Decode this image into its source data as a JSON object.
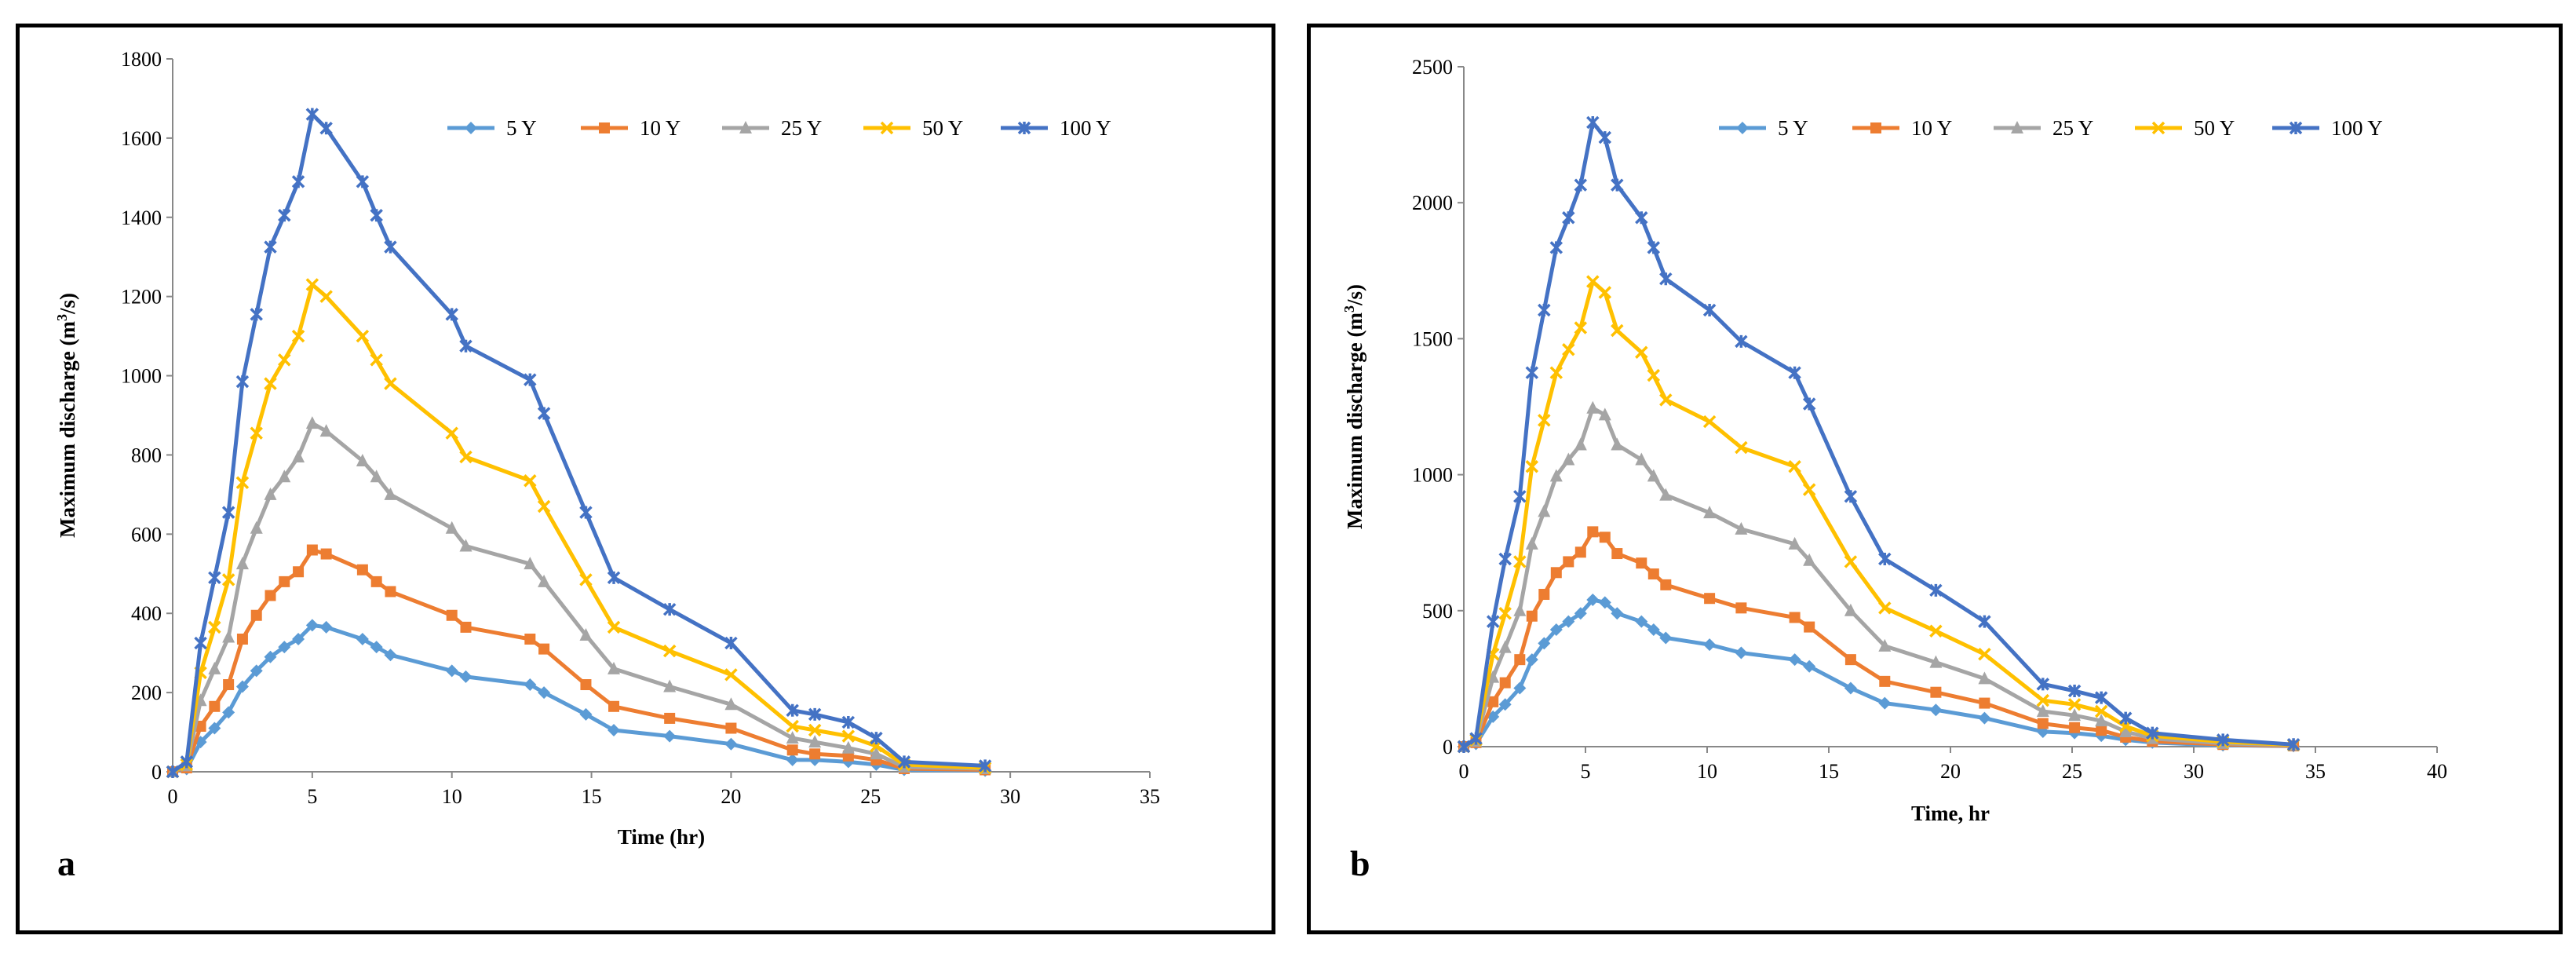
{
  "colors": {
    "5 Y": "#5B9BD5",
    "10 Y": "#ED7D31",
    "25 Y": "#A5A5A5",
    "50 Y": "#FFC000",
    "100 Y": "#4472C4"
  },
  "markers": {
    "5 Y": "diamond",
    "10 Y": "square",
    "25 Y": "triangle",
    "50 Y": "x",
    "100 Y": "star"
  },
  "chart_data": [
    {
      "id": "a",
      "type": "line",
      "panel_label": "a",
      "xlabel": "Time  (hr)",
      "ylabel_prefix": "Maximum  discharge  (m",
      "ylabel_sup": "3",
      "ylabel_suffix": "/s)",
      "xlim": [
        0,
        35
      ],
      "ylim": [
        0,
        1800
      ],
      "xticks": [
        0,
        5,
        10,
        15,
        20,
        25,
        30,
        35
      ],
      "yticks": [
        0,
        200,
        400,
        600,
        800,
        1000,
        1200,
        1400,
        1600,
        1800
      ],
      "legend": [
        "5 Y",
        "10 Y",
        "25 Y",
        "50 Y",
        "100 Y"
      ],
      "x": [
        0,
        0.5,
        1,
        1.5,
        2,
        2.5,
        3,
        3.5,
        4,
        4.5,
        5,
        5.5,
        6.8,
        7.3,
        7.8,
        10,
        10.5,
        12.8,
        13.3,
        14.8,
        15.8,
        17.8,
        20,
        22.2,
        23,
        24.2,
        25.2,
        26.2,
        29.1
      ],
      "series": [
        {
          "name": "5 Y",
          "values": [
            0,
            7,
            75,
            110,
            150,
            215,
            255,
            290,
            315,
            335,
            370,
            365,
            335,
            315,
            295,
            255,
            240,
            220,
            200,
            145,
            105,
            90,
            70,
            30,
            30,
            25,
            18,
            5,
            3
          ]
        },
        {
          "name": "10 Y",
          "values": [
            0,
            10,
            115,
            165,
            220,
            335,
            395,
            445,
            480,
            505,
            560,
            550,
            510,
            480,
            455,
            395,
            365,
            335,
            310,
            220,
            165,
            135,
            110,
            55,
            45,
            40,
            30,
            8,
            5
          ]
        },
        {
          "name": "25 Y",
          "values": [
            0,
            15,
            180,
            260,
            340,
            525,
            615,
            700,
            745,
            795,
            880,
            860,
            785,
            745,
            700,
            615,
            570,
            525,
            480,
            345,
            260,
            215,
            170,
            85,
            75,
            60,
            45,
            12,
            8
          ]
        },
        {
          "name": "50 Y",
          "values": [
            0,
            18,
            250,
            365,
            485,
            730,
            855,
            980,
            1040,
            1100,
            1230,
            1200,
            1100,
            1040,
            980,
            855,
            795,
            735,
            670,
            485,
            365,
            305,
            245,
            115,
            105,
            90,
            65,
            18,
            10
          ]
        },
        {
          "name": "100 Y",
          "values": [
            0,
            25,
            325,
            490,
            655,
            985,
            1155,
            1325,
            1405,
            1490,
            1660,
            1625,
            1490,
            1405,
            1325,
            1155,
            1075,
            990,
            905,
            655,
            490,
            410,
            325,
            155,
            145,
            125,
            85,
            25,
            15
          ]
        }
      ]
    },
    {
      "id": "b",
      "type": "line",
      "panel_label": "b",
      "xlabel": "Time, hr",
      "ylabel_prefix": "Maximum  discharge (m",
      "ylabel_sup": "3",
      "ylabel_suffix": "/s)",
      "xlim": [
        0,
        40
      ],
      "ylim": [
        0,
        2500
      ],
      "xticks": [
        0,
        5,
        10,
        15,
        20,
        25,
        30,
        35,
        40
      ],
      "yticks": [
        0,
        500,
        1000,
        1500,
        2000,
        2500
      ],
      "legend": [
        "5 Y",
        "10 Y",
        "25 Y",
        "50 Y",
        "100 Y"
      ],
      "x": [
        0,
        0.5,
        1.2,
        1.7,
        2.3,
        2.8,
        3.3,
        3.8,
        4.3,
        4.8,
        5.3,
        5.8,
        6.3,
        7.3,
        7.8,
        8.3,
        10.1,
        11.4,
        13.6,
        14.2,
        15.9,
        17.3,
        19.4,
        21.4,
        23.8,
        25.1,
        26.2,
        27.2,
        28.3,
        31.2,
        34.1
      ],
      "series": [
        {
          "name": "5 Y",
          "values": [
            0,
            10,
            110,
            155,
            215,
            320,
            380,
            430,
            460,
            490,
            540,
            530,
            490,
            460,
            430,
            400,
            375,
            345,
            320,
            295,
            215,
            160,
            135,
            105,
            55,
            50,
            40,
            25,
            15,
            5,
            2
          ]
        },
        {
          "name": "10 Y",
          "values": [
            0,
            15,
            165,
            235,
            320,
            480,
            560,
            640,
            680,
            715,
            790,
            770,
            710,
            675,
            635,
            595,
            545,
            510,
            475,
            440,
            320,
            240,
            200,
            160,
            85,
            70,
            60,
            35,
            20,
            8,
            3
          ]
        },
        {
          "name": "25 Y",
          "values": [
            0,
            20,
            255,
            365,
            500,
            745,
            865,
            995,
            1055,
            1110,
            1245,
            1220,
            1110,
            1055,
            995,
            925,
            860,
            800,
            745,
            685,
            500,
            370,
            310,
            250,
            130,
            115,
            95,
            55,
            30,
            12,
            5
          ]
        },
        {
          "name": "50 Y",
          "values": [
            0,
            25,
            340,
            490,
            680,
            1030,
            1200,
            1375,
            1460,
            1540,
            1710,
            1670,
            1530,
            1450,
            1365,
            1275,
            1195,
            1100,
            1030,
            945,
            680,
            510,
            425,
            340,
            170,
            155,
            130,
            75,
            40,
            18,
            6
          ]
        },
        {
          "name": "100 Y",
          "values": [
            0,
            30,
            460,
            690,
            920,
            1375,
            1605,
            1835,
            1945,
            2065,
            2295,
            2240,
            2065,
            1945,
            1835,
            1720,
            1605,
            1490,
            1375,
            1260,
            920,
            690,
            575,
            460,
            230,
            205,
            180,
            105,
            50,
            25,
            8
          ]
        }
      ]
    }
  ]
}
